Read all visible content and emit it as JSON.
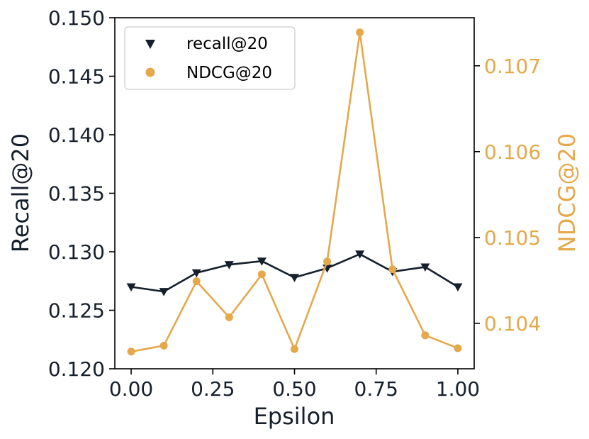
{
  "chart_data": {
    "type": "line",
    "xlabel": "Epsilon",
    "ylabel": "Recall@20",
    "y2label": "NDCG@20",
    "x": [
      0.0,
      0.1,
      0.2,
      0.3,
      0.4,
      0.5,
      0.6,
      0.7,
      0.8,
      0.9,
      1.0
    ],
    "xlim": [
      -0.05,
      1.05
    ],
    "ylim": [
      0.12,
      0.15
    ],
    "y2lim": [
      0.10347,
      0.10756
    ],
    "xticks": [
      "0.00",
      "0.25",
      "0.50",
      "0.75",
      "1.00"
    ],
    "xtick_values": [
      0.0,
      0.25,
      0.5,
      0.75,
      1.0
    ],
    "yticks": [
      "0.120",
      "0.125",
      "0.130",
      "0.135",
      "0.140",
      "0.145",
      "0.150"
    ],
    "ytick_values": [
      0.12,
      0.125,
      0.13,
      0.135,
      0.14,
      0.145,
      0.15
    ],
    "y2ticks": [
      "0.104",
      "0.105",
      "0.106",
      "0.107"
    ],
    "y2tick_values": [
      0.104,
      0.105,
      0.106,
      0.107
    ],
    "legend_position": "top-left",
    "grid": false,
    "series": [
      {
        "name": "recall@20",
        "axis": "left",
        "marker": "triangle-down",
        "color": "#161f2c",
        "values": [
          0.127,
          0.1266,
          0.1282,
          0.1289,
          0.1292,
          0.1278,
          0.1286,
          0.1298,
          0.1283,
          0.1287,
          0.127
        ]
      },
      {
        "name": "NDCG@20",
        "axis": "right",
        "marker": "circle",
        "color": "#e5a84b",
        "values": [
          0.10367,
          0.10374,
          0.10449,
          0.10407,
          0.10457,
          0.1037,
          0.10472,
          0.10739,
          0.10463,
          0.10386,
          0.10371
        ]
      }
    ]
  }
}
